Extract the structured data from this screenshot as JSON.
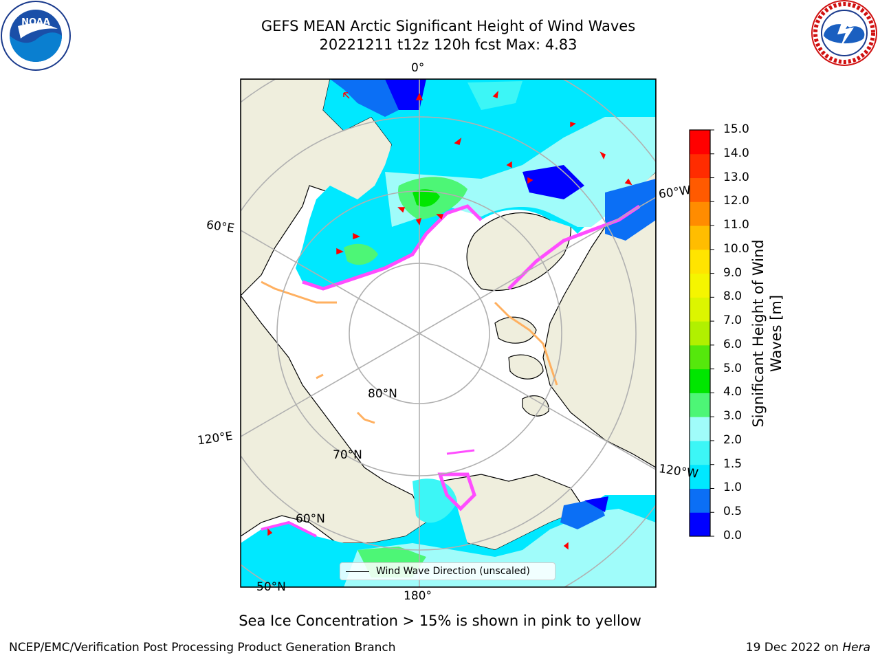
{
  "title": {
    "line1": "GEFS MEAN Arctic Significant Height of Wind Waves",
    "line2": "20221211 t12z 120h fcst   Max: 4.83"
  },
  "logos": {
    "noara_left": {
      "name": "noaa-logo",
      "text": "NOAA",
      "ring_text": "NATIONAL OCEANIC AND ATMOSPHERIC ADMINISTRATION · U.S. DEPARTMENT OF COMMERCE"
    },
    "nws_right": {
      "name": "nws-logo",
      "ring_text": "NATIONAL WEATHER SERVICE"
    }
  },
  "map": {
    "projection": "north-polar-stereographic",
    "longitude_labels": [
      "0°",
      "60°W",
      "120°W",
      "180°",
      "120°E",
      "60°E"
    ],
    "latitude_labels": [
      "80°N",
      "70°N",
      "60°N",
      "50°N"
    ],
    "legend_text": "Wind Wave Direction (unscaled)",
    "colors": {
      "land": "#efeedd",
      "ice": "#ffffff",
      "grid": "#b0b0b0",
      "arrow": "#ff0000",
      "coast": "#000000"
    }
  },
  "colorbar": {
    "label": "Significant Height of Wind Waves [m]",
    "ticks": [
      "0.0",
      "0.5",
      "1.0",
      "1.5",
      "2.0",
      "3.0",
      "4.0",
      "5.0",
      "6.0",
      "7.0",
      "8.0",
      "9.0",
      "10.0",
      "11.0",
      "12.0",
      "13.0",
      "14.0",
      "15.0"
    ],
    "colors": [
      "#0000ff",
      "#0b6ff5",
      "#00e8ff",
      "#3cf6f6",
      "#a0fcfa",
      "#4df676",
      "#00e600",
      "#55e80c",
      "#b1f000",
      "#dcf500",
      "#f5f500",
      "#ffe400",
      "#ffbd00",
      "#ff8c00",
      "#ff5a00",
      "#ff2c00",
      "#ff0000"
    ]
  },
  "footer": {
    "note": "Sea Ice Concentration > 15% is shown in pink to yellow",
    "left": "NCEP/EMC/Verification Post Processing Product Generation Branch",
    "right_date": "19 Dec 2022 on ",
    "right_host": "Hera"
  }
}
